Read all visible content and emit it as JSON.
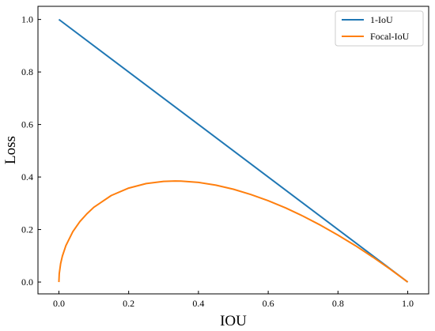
{
  "chart_data": {
    "type": "line",
    "xlabel": "IOU",
    "ylabel": "Loss",
    "xlim": [
      -0.06,
      1.06
    ],
    "ylim": [
      -0.045,
      1.05
    ],
    "xticks": [
      0.0,
      0.2,
      0.4,
      0.6,
      0.8,
      1.0
    ],
    "yticks": [
      0.0,
      0.2,
      0.4,
      0.6,
      0.8,
      1.0
    ],
    "xtick_labels": [
      "0.0",
      "0.2",
      "0.4",
      "0.6",
      "0.8",
      "1.0"
    ],
    "ytick_labels": [
      "0.0",
      "0.2",
      "0.4",
      "0.6",
      "0.8",
      "1.0"
    ],
    "grid": false,
    "legend_position": "top-right",
    "series": [
      {
        "name": "1-IoU",
        "color": "#1f77b4",
        "x": [
          0.0,
          1.0
        ],
        "y": [
          1.0,
          0.0
        ]
      },
      {
        "name": "Focal-IoU",
        "color": "#ff7f0e",
        "x": [
          0.0,
          0.001,
          0.005,
          0.01,
          0.02,
          0.04,
          0.06,
          0.08,
          0.1,
          0.15,
          0.2,
          0.25,
          0.3,
          0.333,
          0.35,
          0.4,
          0.45,
          0.5,
          0.55,
          0.6,
          0.65,
          0.7,
          0.75,
          0.8,
          0.85,
          0.9,
          0.95,
          1.0
        ],
        "y": [
          0.0,
          0.0316,
          0.0704,
          0.099,
          0.1386,
          0.192,
          0.2302,
          0.2596,
          0.2846,
          0.3295,
          0.3578,
          0.375,
          0.3834,
          0.3849,
          0.3845,
          0.3795,
          0.3689,
          0.3536,
          0.3336,
          0.3098,
          0.2824,
          0.251,
          0.2165,
          0.1788,
          0.1386,
          0.0949,
          0.0487,
          0.0
        ]
      }
    ]
  }
}
